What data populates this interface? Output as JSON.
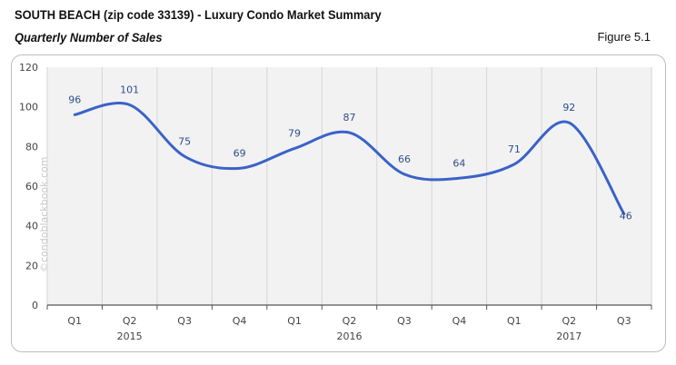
{
  "header": {
    "title": "SOUTH BEACH (zip code 33139) - Luxury Condo Market Summary",
    "subtitle": "Quarterly Number of Sales",
    "figure": "Figure 5.1"
  },
  "watermark": "©condoblackbook.com",
  "chart_data": {
    "type": "line",
    "title": "",
    "categories": [
      "Q1",
      "Q2",
      "Q3",
      "Q4",
      "Q1",
      "Q2",
      "Q3",
      "Q4",
      "Q1",
      "Q2",
      "Q3"
    ],
    "year_labels": [
      {
        "label": "2015",
        "index": 1
      },
      {
        "label": "2016",
        "index": 5
      },
      {
        "label": "2017",
        "index": 9
      }
    ],
    "values": [
      96,
      101,
      75,
      69,
      79,
      87,
      66,
      64,
      71,
      92,
      46
    ],
    "ylim": [
      0,
      120
    ],
    "yticks": [
      0,
      20,
      40,
      60,
      80,
      100,
      120
    ],
    "smooth": true,
    "grid": "vertical",
    "line_color": "#3a63c8",
    "label_color": "#2f4f8f",
    "plot_bg": "#f2f2f2"
  }
}
